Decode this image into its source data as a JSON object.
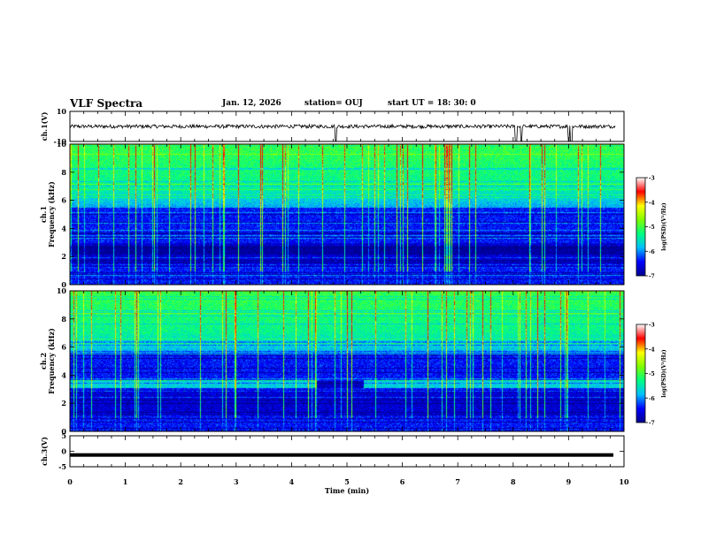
{
  "header": {
    "title": "VLF Spectra",
    "date": "Jan. 12, 2026",
    "station": "station= OUJ",
    "start": "start  UT  =   18: 30: 0"
  },
  "chart_data": [
    {
      "id": "ch1-waveform",
      "type": "line",
      "ylabel": "ch.1(V)",
      "ylim": [
        -10,
        10
      ],
      "yticks": [
        "10",
        "-10"
      ],
      "baseline": 0,
      "spikes_at_min": [
        4.8,
        8.05,
        8.15,
        9.0,
        9.05
      ]
    },
    {
      "id": "ch1-spectrogram",
      "type": "heatmap",
      "ylabel": "ch.1",
      "ylabel2": "Frequency (kHz)",
      "ylim": [
        0,
        10
      ],
      "yticks": [
        "0",
        "2",
        "4",
        "6",
        "8",
        "10"
      ],
      "colorbar": {
        "label": "log(PSD)(V²/Hz)",
        "range": [
          -7,
          -3
        ],
        "ticks": [
          "-3",
          "-4",
          "-5",
          "-6",
          "-7"
        ]
      }
    },
    {
      "id": "ch2-spectrogram",
      "type": "heatmap",
      "ylabel": "ch.2",
      "ylabel2": "Frequency (kHz)",
      "ylim": [
        0,
        10
      ],
      "yticks": [
        "0",
        "2",
        "4",
        "6",
        "8",
        "10"
      ],
      "gap_min": [
        4.45,
        5.3
      ],
      "colorbar": {
        "label": "log(PSD)(V²/Hz)",
        "range": [
          -7,
          -3
        ],
        "ticks": [
          "-3",
          "-4",
          "-5",
          "-6",
          "-7"
        ]
      }
    },
    {
      "id": "ch3-waveform",
      "type": "line",
      "ylabel": "ch.3(V)",
      "ylim": [
        -5,
        5
      ],
      "yticks": [
        "5",
        "0",
        "-5"
      ],
      "baseline": -1.2
    }
  ],
  "xaxis": {
    "label": "Time (min)",
    "range": [
      0,
      10
    ],
    "ticks": [
      "0",
      "1",
      "2",
      "3",
      "4",
      "5",
      "6",
      "7",
      "8",
      "9",
      "10"
    ]
  },
  "colors": {
    "colormap": [
      "#00008b",
      "#0000ff",
      "#00bfff",
      "#00ff7f",
      "#7fff00",
      "#ffff00",
      "#ff0000",
      "#ffffff"
    ]
  }
}
